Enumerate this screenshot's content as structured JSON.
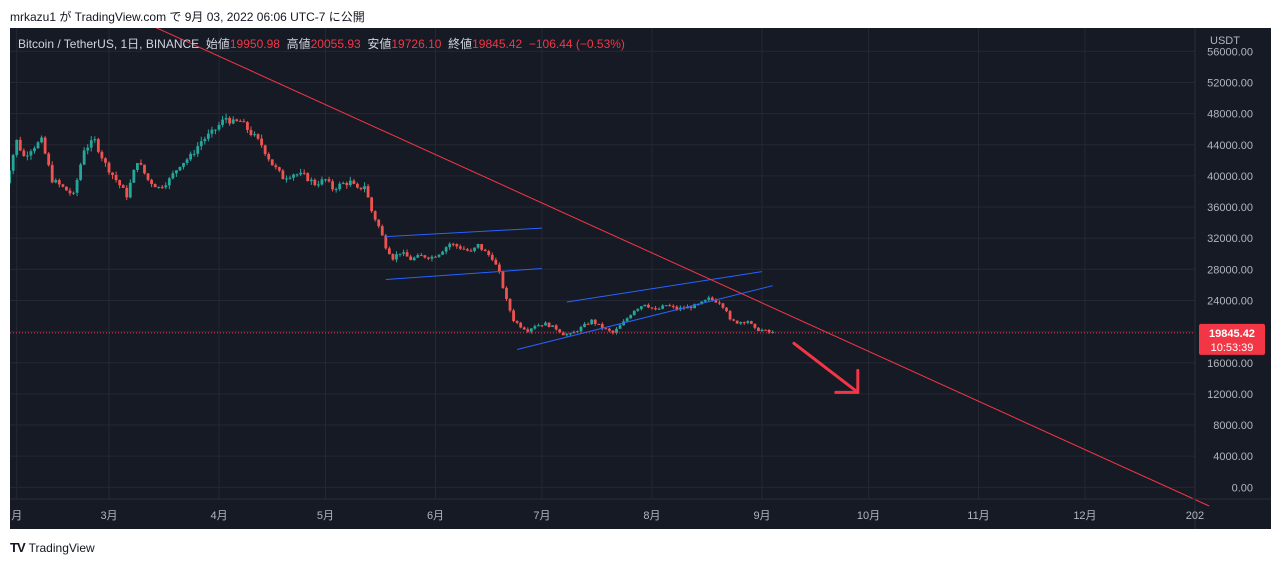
{
  "caption": "mrkazu1 が TradingView.com で 9月 03, 2022 06:06 UTC-7 に公開",
  "footer": {
    "brand": "TradingView",
    "logo_icon": "tradingview-logo-icon"
  },
  "legend": {
    "symbol": "Bitcoin / TetherUS, 1日, BINANCE",
    "open_label": "始値",
    "open": "19950.98",
    "high_label": "高値",
    "high": "20055.93",
    "low_label": "安値",
    "low": "19726.10",
    "close_label": "終値",
    "close": "19845.42",
    "change": "−106.44 (−0.53%)"
  },
  "colors": {
    "background": "#161a25",
    "up": "#26a69a",
    "down": "#ef5350",
    "channel": "#2962ff",
    "trendline": "#f23645",
    "price_tag": "#f23645"
  },
  "chart_data": {
    "type": "candlestick",
    "currency": "USDT",
    "ylim": [
      -1500,
      59000
    ],
    "yticks": [
      "56000.00",
      "52000.00",
      "48000.00",
      "44000.00",
      "40000.00",
      "36000.00",
      "32000.00",
      "28000.00",
      "24000.00",
      "20000.00",
      "16000.00",
      "12000.00",
      "8000.00",
      "4000.00",
      "0.00"
    ],
    "ytick_values": [
      56000,
      52000,
      48000,
      44000,
      40000,
      36000,
      32000,
      28000,
      24000,
      20000,
      16000,
      12000,
      8000,
      4000,
      0
    ],
    "xticks": [
      "月",
      "3月",
      "4月",
      "5月",
      "6月",
      "7月",
      "8月",
      "9月",
      "10月",
      "11月",
      "12月",
      "202"
    ],
    "xtick_days": [
      -26,
      0,
      31,
      61,
      92,
      122,
      153,
      184,
      214,
      245,
      275,
      306
    ],
    "x_unit": "days since 2022-03-01",
    "last_price": "19845.42",
    "countdown": "10:53:39",
    "price_path": [
      [
        -30,
        37500
      ],
      [
        -28,
        41000
      ],
      [
        -26,
        44500
      ],
      [
        -24,
        42500
      ],
      [
        -22,
        43500
      ],
      [
        -19,
        44500
      ],
      [
        -16,
        39500
      ],
      [
        -13,
        38500
      ],
      [
        -10,
        37500
      ],
      [
        -7,
        43500
      ],
      [
        -4,
        44500
      ],
      [
        -1,
        41500
      ],
      [
        2,
        39500
      ],
      [
        5,
        37500
      ],
      [
        8,
        42000
      ],
      [
        11,
        39500
      ],
      [
        14,
        38500
      ],
      [
        17,
        39500
      ],
      [
        20,
        41500
      ],
      [
        23,
        42500
      ],
      [
        26,
        44500
      ],
      [
        29,
        45500
      ],
      [
        31,
        46500
      ],
      [
        33,
        47500
      ],
      [
        35,
        46800
      ],
      [
        37,
        47000
      ],
      [
        40,
        45500
      ],
      [
        43,
        44000
      ],
      [
        46,
        41500
      ],
      [
        49,
        39800
      ],
      [
        52,
        40300
      ],
      [
        55,
        40000
      ],
      [
        58,
        39000
      ],
      [
        61,
        39500
      ],
      [
        63,
        38400
      ],
      [
        66,
        39000
      ],
      [
        68,
        39200
      ],
      [
        70,
        38200
      ],
      [
        72,
        38800
      ],
      [
        74,
        35500
      ],
      [
        76,
        33500
      ],
      [
        78,
        31000
      ],
      [
        80,
        29500
      ],
      [
        82,
        30200
      ],
      [
        85,
        29300
      ],
      [
        88,
        29700
      ],
      [
        91,
        29600
      ],
      [
        93,
        30100
      ],
      [
        96,
        31300
      ],
      [
        99,
        30800
      ],
      [
        102,
        30200
      ],
      [
        104,
        31100
      ],
      [
        106,
        30200
      ],
      [
        108,
        29500
      ],
      [
        110,
        27500
      ],
      [
        112,
        24000
      ],
      [
        114,
        21500
      ],
      [
        116,
        20700
      ],
      [
        118,
        20200
      ],
      [
        120,
        20800
      ],
      [
        123,
        21000
      ],
      [
        126,
        20400
      ],
      [
        128,
        19700
      ],
      [
        130,
        19600
      ],
      [
        133,
        20500
      ],
      [
        136,
        21400
      ],
      [
        139,
        20500
      ],
      [
        142,
        19800
      ],
      [
        145,
        21200
      ],
      [
        148,
        22800
      ],
      [
        151,
        23600
      ],
      [
        154,
        22700
      ],
      [
        157,
        23400
      ],
      [
        160,
        22900
      ],
      [
        163,
        23100
      ],
      [
        166,
        23400
      ],
      [
        169,
        24200
      ],
      [
        172,
        23800
      ],
      [
        174,
        22800
      ],
      [
        175,
        21400
      ],
      [
        177,
        21200
      ],
      [
        180,
        21400
      ],
      [
        182,
        20300
      ],
      [
        184,
        20200
      ],
      [
        186,
        19900
      ],
      [
        187,
        19845
      ]
    ],
    "annotations": {
      "channels": [
        {
          "name": "channel-may-june",
          "upper": [
            [
              78,
              32200
            ],
            [
              122,
              33300
            ]
          ],
          "lower": [
            [
              78,
              26700
            ],
            [
              122,
              28100
            ]
          ]
        },
        {
          "name": "channel-june-august",
          "upper": [
            [
              129,
              23800
            ],
            [
              184,
              27700
            ]
          ],
          "lower": [
            [
              115,
              17700
            ],
            [
              187,
              25900
            ]
          ]
        }
      ],
      "trendline": [
        [
          -30,
          68000
        ],
        [
          310,
          -2400
        ]
      ],
      "arrow": {
        "from": [
          193,
          18500
        ],
        "to": [
          211,
          12200
        ]
      }
    }
  }
}
